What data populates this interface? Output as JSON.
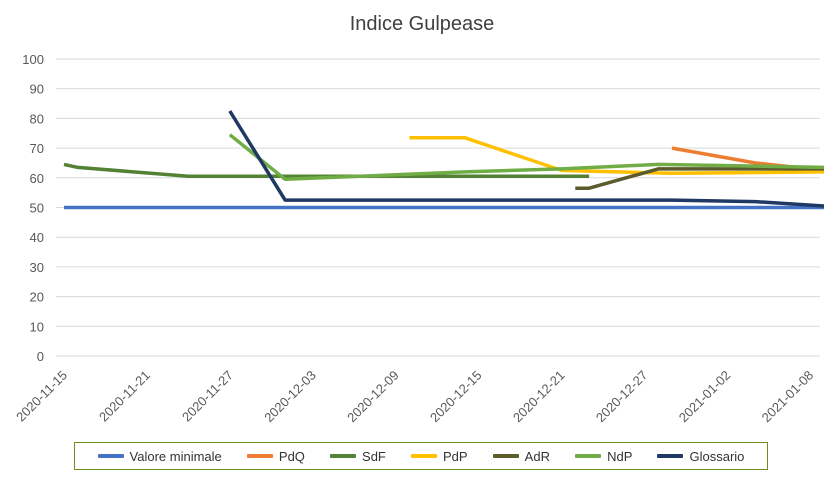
{
  "chart_data": {
    "type": "line",
    "title": "Indice Gulpease",
    "xlabel": "",
    "ylabel": "",
    "ylim": [
      0,
      100
    ],
    "yticks": [
      0,
      10,
      20,
      30,
      40,
      50,
      60,
      70,
      80,
      90,
      100
    ],
    "xlim": [
      "2020-11-15",
      "2021-01-09"
    ],
    "xticks": [
      "2020-11-15",
      "2020-11-21",
      "2020-11-27",
      "2020-12-03",
      "2020-12-09",
      "2020-12-15",
      "2020-12-21",
      "2020-12-27",
      "2021-01-02",
      "2021-01-08"
    ],
    "grid": "horizontal",
    "legend": "bottom",
    "series": [
      {
        "name": "Valore minimale",
        "color": "#4472c4",
        "points": [
          [
            "2020-11-15",
            50
          ],
          [
            "2021-01-09",
            50
          ]
        ]
      },
      {
        "name": "PdQ",
        "color": "#ed7d31",
        "points": [
          [
            "2020-12-29",
            70
          ],
          [
            "2021-01-04",
            65
          ],
          [
            "2021-01-09",
            62.5
          ]
        ]
      },
      {
        "name": "SdF",
        "color": "#548235",
        "points": [
          [
            "2020-11-15",
            64.5
          ],
          [
            "2020-11-16",
            63.5
          ],
          [
            "2020-11-24",
            60.5
          ],
          [
            "2020-11-30",
            60.5
          ],
          [
            "2020-12-23",
            60.5
          ]
        ]
      },
      {
        "name": "PdP",
        "color": "#ffc000",
        "points": [
          [
            "2020-12-10",
            73.5
          ],
          [
            "2020-12-14",
            73.5
          ],
          [
            "2020-12-21",
            62.5
          ],
          [
            "2020-12-29",
            61.5
          ],
          [
            "2021-01-09",
            62
          ]
        ]
      },
      {
        "name": "AdR",
        "color": "#5b5b2e",
        "points": [
          [
            "2020-12-22",
            56.5
          ],
          [
            "2020-12-23",
            56.5
          ],
          [
            "2020-12-28",
            63
          ],
          [
            "2021-01-09",
            63
          ]
        ]
      },
      {
        "name": "NdP",
        "color": "#70ad47",
        "points": [
          [
            "2020-11-27",
            74.5
          ],
          [
            "2020-12-01",
            59.5
          ],
          [
            "2020-12-09",
            61
          ],
          [
            "2020-12-14",
            62
          ],
          [
            "2020-12-21",
            63
          ],
          [
            "2020-12-28",
            64.5
          ],
          [
            "2021-01-09",
            63.5
          ]
        ]
      },
      {
        "name": "Glossario",
        "color": "#203864",
        "points": [
          [
            "2020-11-27",
            82.5
          ],
          [
            "2020-12-01",
            52.5
          ],
          [
            "2020-12-29",
            52.5
          ],
          [
            "2021-01-04",
            52
          ],
          [
            "2021-01-09",
            50.5
          ]
        ]
      }
    ]
  }
}
